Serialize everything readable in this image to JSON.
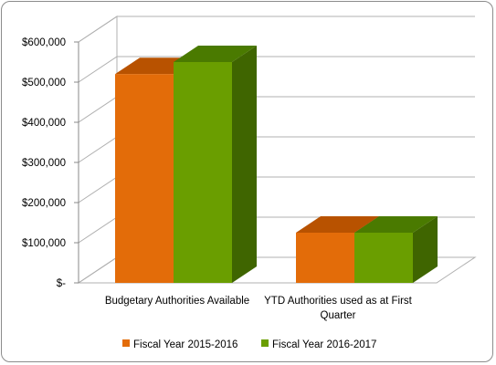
{
  "chart_data": {
    "type": "bar",
    "title": "",
    "xlabel": "",
    "ylabel": "",
    "categories": [
      [
        "Budgetary Authorities Available"
      ],
      [
        "YTD Authorities used as at First",
        "Quarter"
      ]
    ],
    "series": [
      {
        "name": "Fiscal Year 2015-2016",
        "color": "#e36c09",
        "top_color": "#b85200",
        "side_color": "#a04700",
        "values": [
          520000,
          125000
        ]
      },
      {
        "name": "Fiscal Year 2016-2017",
        "color": "#6a9e00",
        "top_color": "#4a7a00",
        "side_color": "#3f6500",
        "values": [
          550000,
          125000
        ]
      }
    ],
    "ylim": [
      0,
      600000
    ],
    "yticks": [
      0,
      100000,
      200000,
      300000,
      400000,
      500000,
      600000
    ],
    "ytick_labels": [
      "$-",
      "$100,000",
      "$200,000",
      "$300,000",
      "$400,000",
      "$500,000",
      "$600,000"
    ],
    "grid": true,
    "legend_position": "bottom",
    "style": "3d-clustered-column"
  }
}
